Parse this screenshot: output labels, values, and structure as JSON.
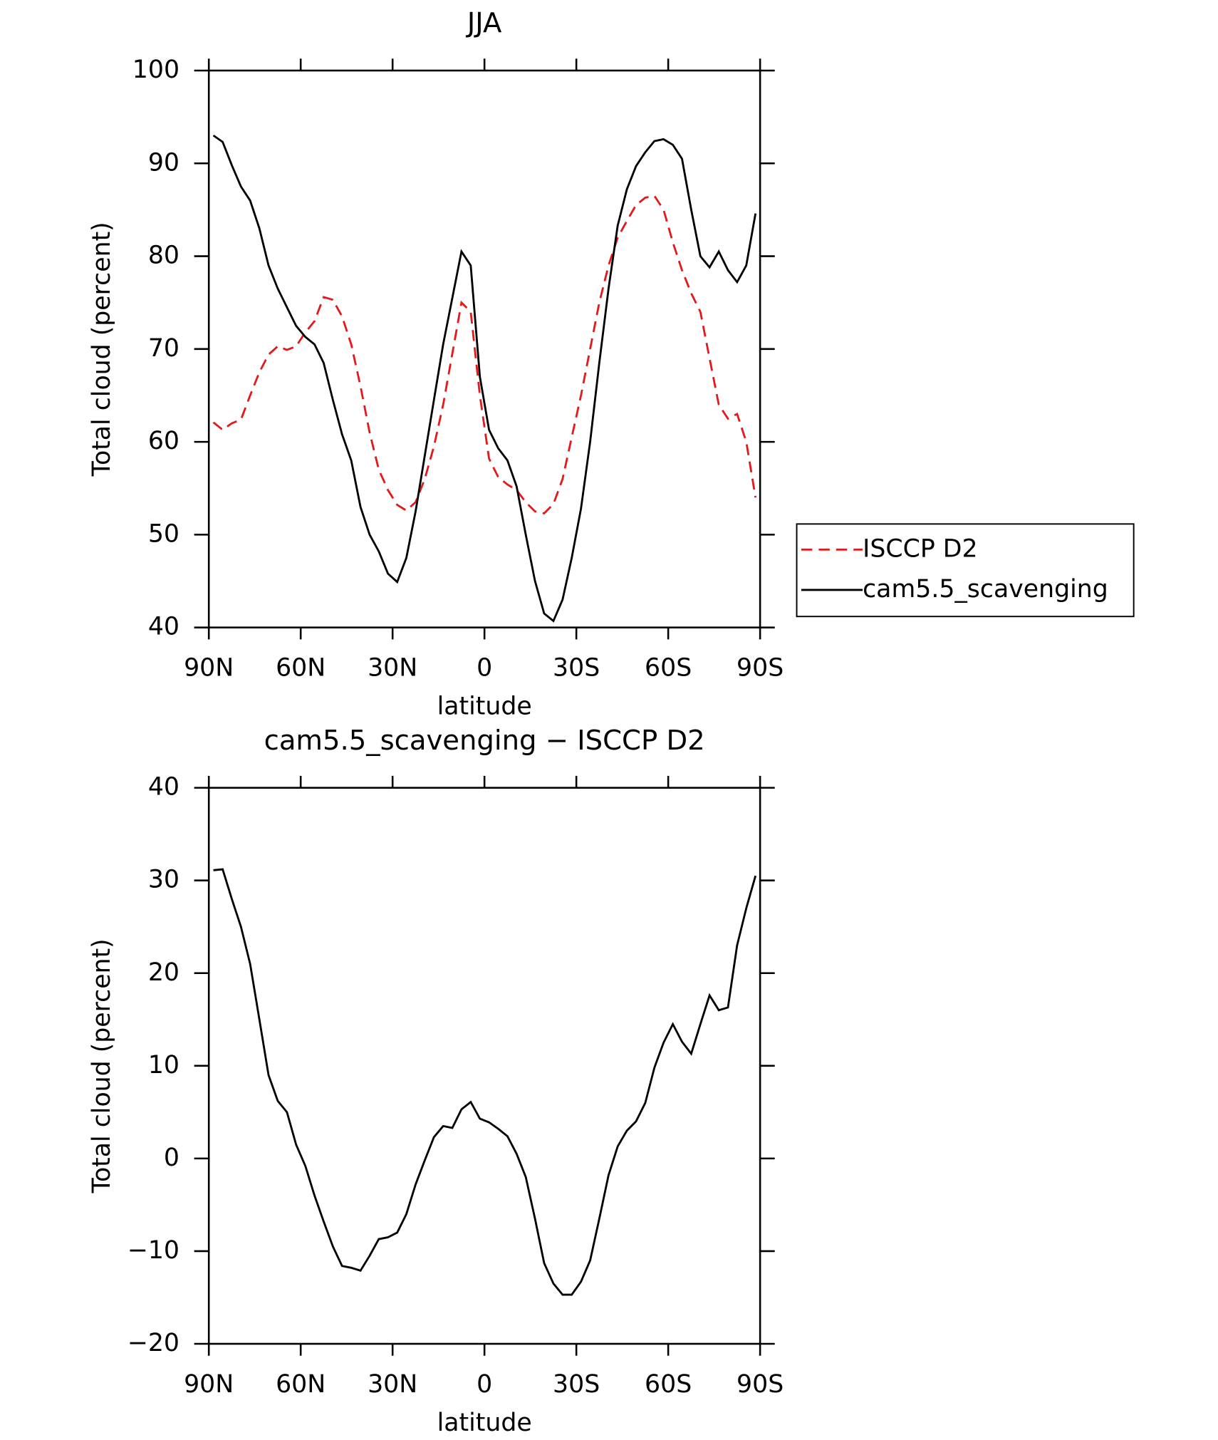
{
  "chart_data": [
    {
      "type": "line",
      "title": "JJA",
      "xlabel": "latitude",
      "ylabel": "Total cloud (percent)",
      "x": [
        88.5,
        85.5,
        82.5,
        79.5,
        76.5,
        73.5,
        70.5,
        67.5,
        64.5,
        61.5,
        58.5,
        55.5,
        52.5,
        49.5,
        46.5,
        43.5,
        40.5,
        37.5,
        34.5,
        31.5,
        28.5,
        25.5,
        22.5,
        19.5,
        16.5,
        13.5,
        10.5,
        7.5,
        4.5,
        1.5,
        -1.5,
        -4.5,
        -7.5,
        -10.5,
        -13.5,
        -16.5,
        -19.5,
        -22.5,
        -25.5,
        -28.5,
        -31.5,
        -34.5,
        -37.5,
        -40.5,
        -43.5,
        -46.5,
        -49.5,
        -52.5,
        -55.5,
        -58.5,
        -61.5,
        -64.5,
        -67.5,
        -70.5,
        -73.5,
        -76.5,
        -79.5,
        -82.5,
        -85.5,
        -88.5
      ],
      "series": [
        {
          "name": "ISCCP D2",
          "color": "#e31a1c",
          "linestyle": "dashed",
          "values": [
            62.1,
            61.3,
            62,
            62.4,
            65,
            67.5,
            69.4,
            70.3,
            69.9,
            70.3,
            71.8,
            73,
            75.6,
            75.3,
            73.5,
            70.5,
            66,
            61,
            57,
            54.8,
            53.2,
            52.6,
            53.5,
            56,
            59.5,
            64,
            69.5,
            75,
            74,
            65,
            58.2,
            56.2,
            55.4,
            54.8,
            53.5,
            52.5,
            52.3,
            53.3,
            56,
            60.5,
            65,
            70,
            75,
            79,
            82,
            83.8,
            85.5,
            86.3,
            86.5,
            85,
            81.5,
            78.5,
            76,
            74,
            69,
            64,
            62.5,
            63,
            60,
            54
          ]
        },
        {
          "name": "cam5.5_scavenging",
          "color": "#000000",
          "linestyle": "solid",
          "values": [
            93,
            92.3,
            89.8,
            87.5,
            86,
            83,
            79,
            76.5,
            74.5,
            72.5,
            71.3,
            70.5,
            68.5,
            64.5,
            60.8,
            58,
            53,
            50,
            48.2,
            45.8,
            44.9,
            47.5,
            52.5,
            58.5,
            64.5,
            70.5,
            75.5,
            80.5,
            79,
            67,
            61.3,
            59.3,
            58,
            55.2,
            50,
            45,
            41.5,
            40.7,
            43,
            47.5,
            52.8,
            60,
            68.5,
            76.5,
            83.3,
            87.2,
            89.7,
            91.2,
            92.4,
            92.6,
            92,
            90.5,
            85,
            80,
            78.8,
            80.5,
            78.5,
            77.2,
            79,
            84.6
          ]
        }
      ],
      "xlim": [
        90,
        -90
      ],
      "xticks": [
        {
          "value": 90,
          "label": "90N"
        },
        {
          "value": 60,
          "label": "60N"
        },
        {
          "value": 30,
          "label": "30N"
        },
        0,
        {
          "value": -30,
          "label": "30S"
        },
        {
          "value": -60,
          "label": "60S"
        },
        {
          "value": -90,
          "label": "90S"
        }
      ],
      "ylim": [
        40,
        100
      ],
      "yticks": [
        40,
        50,
        60,
        70,
        80,
        90,
        100
      ],
      "legend": "right"
    },
    {
      "type": "line",
      "title": "cam5.5_scavenging − ISCCP D2",
      "xlabel": "latitude",
      "ylabel": "Total cloud (percent)",
      "x": [
        88.5,
        85.5,
        82.5,
        79.5,
        76.5,
        73.5,
        70.5,
        67.5,
        64.5,
        61.5,
        58.5,
        55.5,
        52.5,
        49.5,
        46.5,
        43.5,
        40.5,
        37.5,
        34.5,
        31.5,
        28.5,
        25.5,
        22.5,
        19.5,
        16.5,
        13.5,
        10.5,
        7.5,
        4.5,
        1.5,
        -1.5,
        -4.5,
        -7.5,
        -10.5,
        -13.5,
        -16.5,
        -19.5,
        -22.5,
        -25.5,
        -28.5,
        -31.5,
        -34.5,
        -37.5,
        -40.5,
        -43.5,
        -46.5,
        -49.5,
        -52.5,
        -55.5,
        -58.5,
        -61.5,
        -64.5,
        -67.5,
        -70.5,
        -73.5,
        -76.5,
        -79.5,
        -82.5,
        -85.5,
        -88.5
      ],
      "color": "#000000",
      "values": [
        31.1,
        31.2,
        28,
        25,
        21,
        15,
        9,
        6.2,
        5,
        1.5,
        -0.8,
        -4,
        -6.8,
        -9.5,
        -11.6,
        -11.8,
        -12.1,
        -10.5,
        -8.7,
        -8.5,
        -8,
        -6,
        -2.8,
        -0.2,
        2.3,
        3.5,
        3.3,
        5.3,
        6.1,
        4.3,
        3.9,
        3.2,
        2.4,
        0.5,
        -2,
        -6.5,
        -11.3,
        -13.5,
        -14.7,
        -14.7,
        -13.3,
        -11,
        -6.5,
        -1.8,
        1.3,
        3,
        4,
        6,
        9.8,
        12.5,
        14.5,
        12.6,
        11.3,
        14.5,
        17.6,
        16,
        16.3,
        23,
        27,
        30.5
      ],
      "xlim": [
        90,
        -90
      ],
      "xticks": [
        {
          "value": 90,
          "label": "90N"
        },
        {
          "value": 60,
          "label": "60N"
        },
        {
          "value": 30,
          "label": "30N"
        },
        0,
        {
          "value": -30,
          "label": "30S"
        },
        {
          "value": -60,
          "label": "60S"
        },
        {
          "value": -90,
          "label": "90S"
        }
      ],
      "ylim": [
        -20,
        40
      ],
      "yticks": [
        {
          "value": -20,
          "label": "−20"
        },
        {
          "value": -10,
          "label": "−10"
        },
        0,
        10,
        20,
        30,
        40
      ]
    }
  ]
}
